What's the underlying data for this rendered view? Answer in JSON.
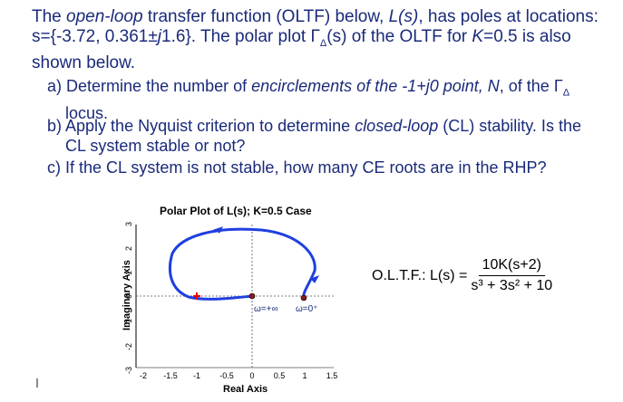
{
  "problem": {
    "intro_part1": "The ",
    "intro_italic1": "open-loop",
    "intro_part2": " transfer function (OLTF) below, ",
    "intro_Ls": "L(s)",
    "intro_part3": ", has poles at locations:  s={-3.72, 0.361±",
    "intro_j": "j",
    "intro_part4": "1.6}.  The polar plot Γ",
    "intro_delta": "Δ",
    "intro_part5": "(s) of the OLTF for ",
    "intro_K": "K",
    "intro_part6": "=0.5 is also shown below.",
    "qa_label": "a)",
    "qa_text1": "Determine the number of ",
    "qa_italic": "encirclements of the -1+j0 point, N",
    "qa_text2": ", of the Γ",
    "qa_delta": "Δ",
    "qa_text3": "locus.",
    "qb_label": "b)",
    "qb_text1": "Apply the Nyquist criterion to determine ",
    "qb_italic": "closed-loop",
    "qb_text2": " (CL) stability.  Is the",
    "qb_text3": "CL system stable or not?",
    "qc_label": "c)",
    "qc_text": "If the CL system is not stable, how many CE roots are in the RHP?"
  },
  "plot": {
    "title": "Polar Plot of L(s); K=0.5 Case",
    "xlabel": "Real Axis",
    "ylabel": "Imaginary Axis",
    "x_ticks": [
      "-2",
      "-1.5",
      "-1",
      "-0.5",
      "0",
      "0.5",
      "1",
      "1.5"
    ],
    "y_ticks": [
      "3",
      "2",
      "1",
      "0",
      "-1",
      "-2",
      "-3"
    ],
    "label_w_inf": "ω=+∞",
    "label_w_zero": "ω=0⁺",
    "curve_color": "#1f3fe0",
    "marker_color": "#8b1a1a",
    "critical_color": "#ee0000"
  },
  "formula": {
    "prefix": "O.L.T.F.: L(s) =",
    "numerator": "10K(s+2)",
    "denominator": "s³ + 3s² + 10"
  }
}
